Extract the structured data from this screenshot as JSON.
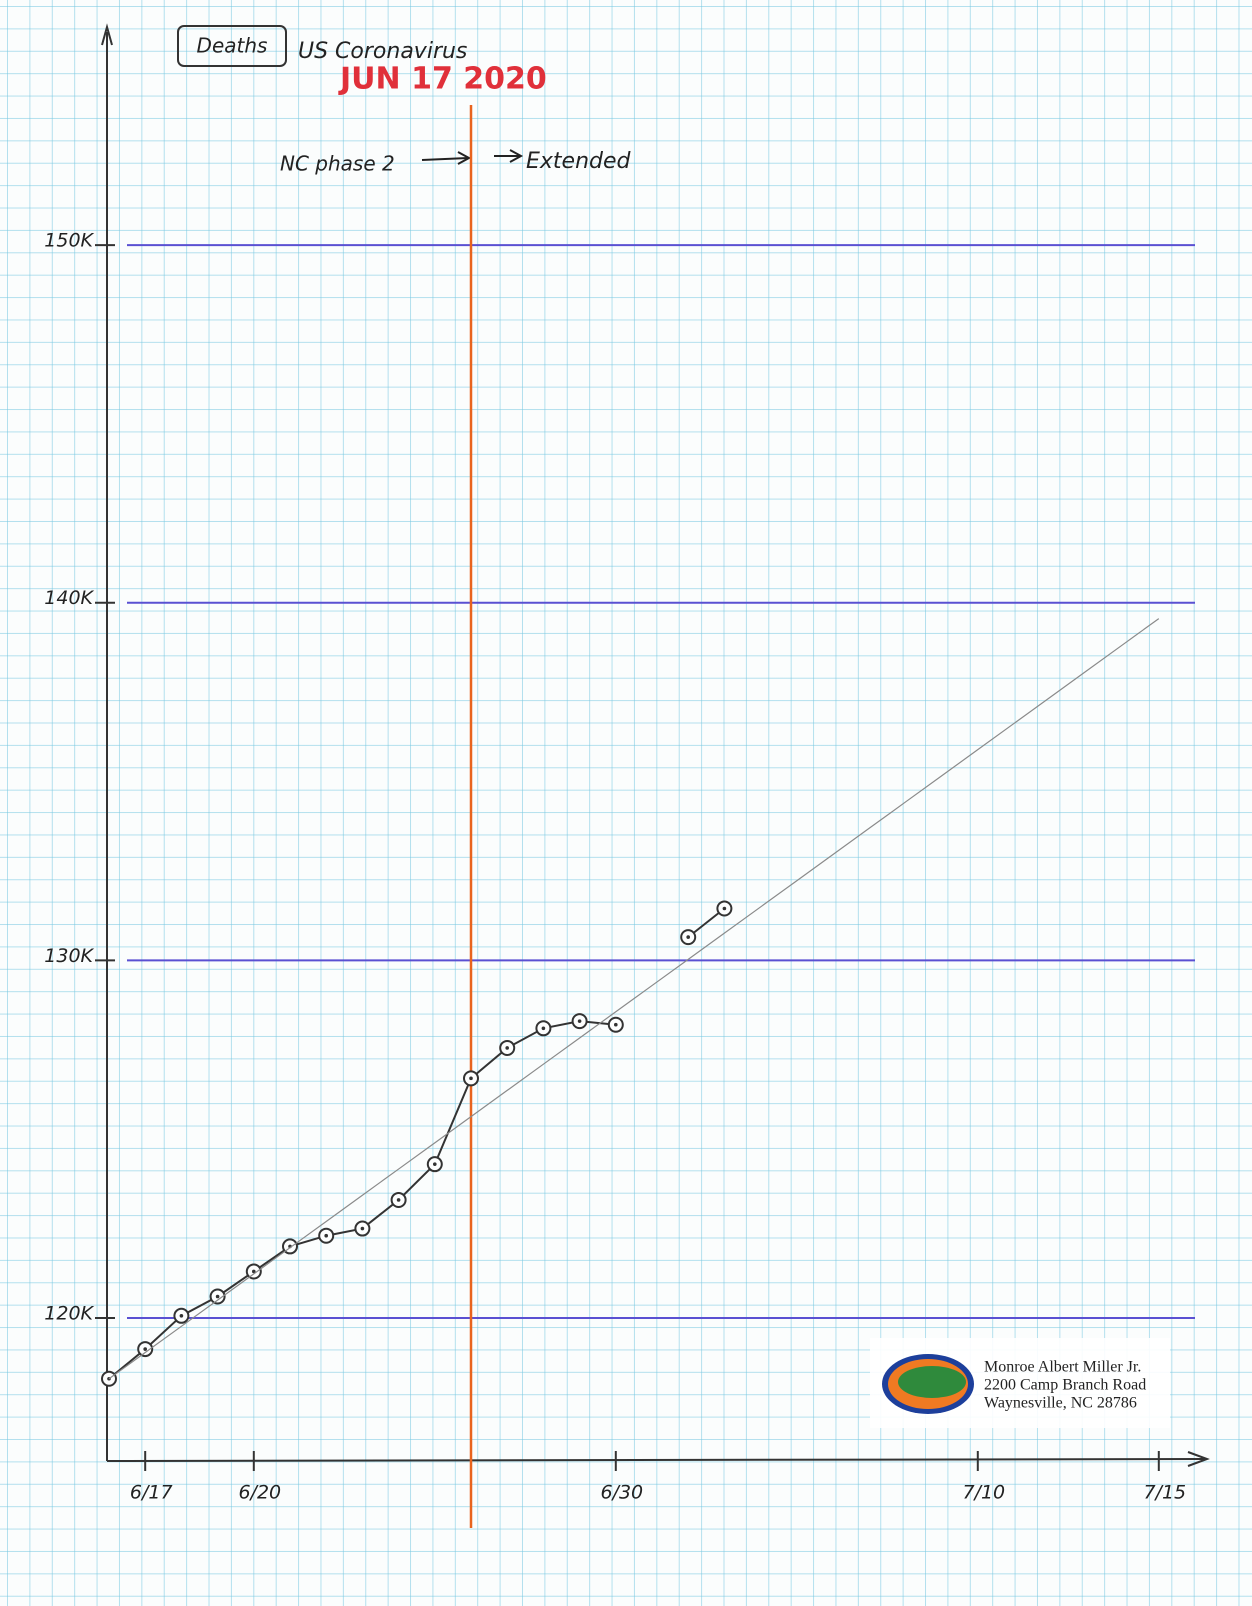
{
  "chart_data": {
    "type": "line",
    "title": "Deaths",
    "subtitle": "US Coronavirus",
    "stamp": "JUN 17 2020",
    "annotations": [
      "NC phase 2",
      "Extended"
    ],
    "address": [
      "Monroe Albert Miller Jr.",
      "2200 Camp Branch Road",
      "Waynesville, NC  28786"
    ],
    "categories": [
      null,
      "6/17",
      null,
      null,
      "6/20",
      null,
      null,
      null,
      null,
      null,
      null,
      null,
      null,
      null,
      "6/30",
      null,
      null,
      null,
      null,
      null,
      null,
      null,
      null,
      null,
      "7/10",
      null,
      null,
      null,
      null,
      "7/15"
    ],
    "series": [
      {
        "color": "#333333",
        "values": [
          118300,
          119130,
          120060,
          120600,
          121300,
          122000,
          122300,
          122500,
          123300,
          124300,
          126700,
          127550,
          128100,
          128300,
          128200,
          null,
          130650,
          131450,
          null,
          null,
          null,
          null,
          null,
          null,
          null,
          null,
          null,
          null,
          null,
          null
        ]
      },
      {
        "color": "#8a8a8a",
        "values": [
          118300,
          119033,
          119766,
          120499,
          121232,
          121965,
          122698,
          123431,
          124164,
          124897,
          125630,
          126363,
          127096,
          127829,
          128562,
          129295,
          130028,
          130761,
          131494,
          132227,
          132960,
          133693,
          134426,
          135159,
          135892,
          136625,
          137358,
          138091,
          138824,
          139557
        ]
      }
    ],
    "vline": {
      "x": 10,
      "color": "#e8641e"
    },
    "ylim": [
      116000,
      156100
    ],
    "yticks": [
      {
        "value": 120000,
        "label": "120K"
      },
      {
        "value": 130000,
        "label": "130K"
      },
      {
        "value": 140000,
        "label": "140K"
      },
      {
        "value": 150000,
        "label": "150K"
      }
    ],
    "grid": true,
    "grid_color": "#5a50d2"
  }
}
